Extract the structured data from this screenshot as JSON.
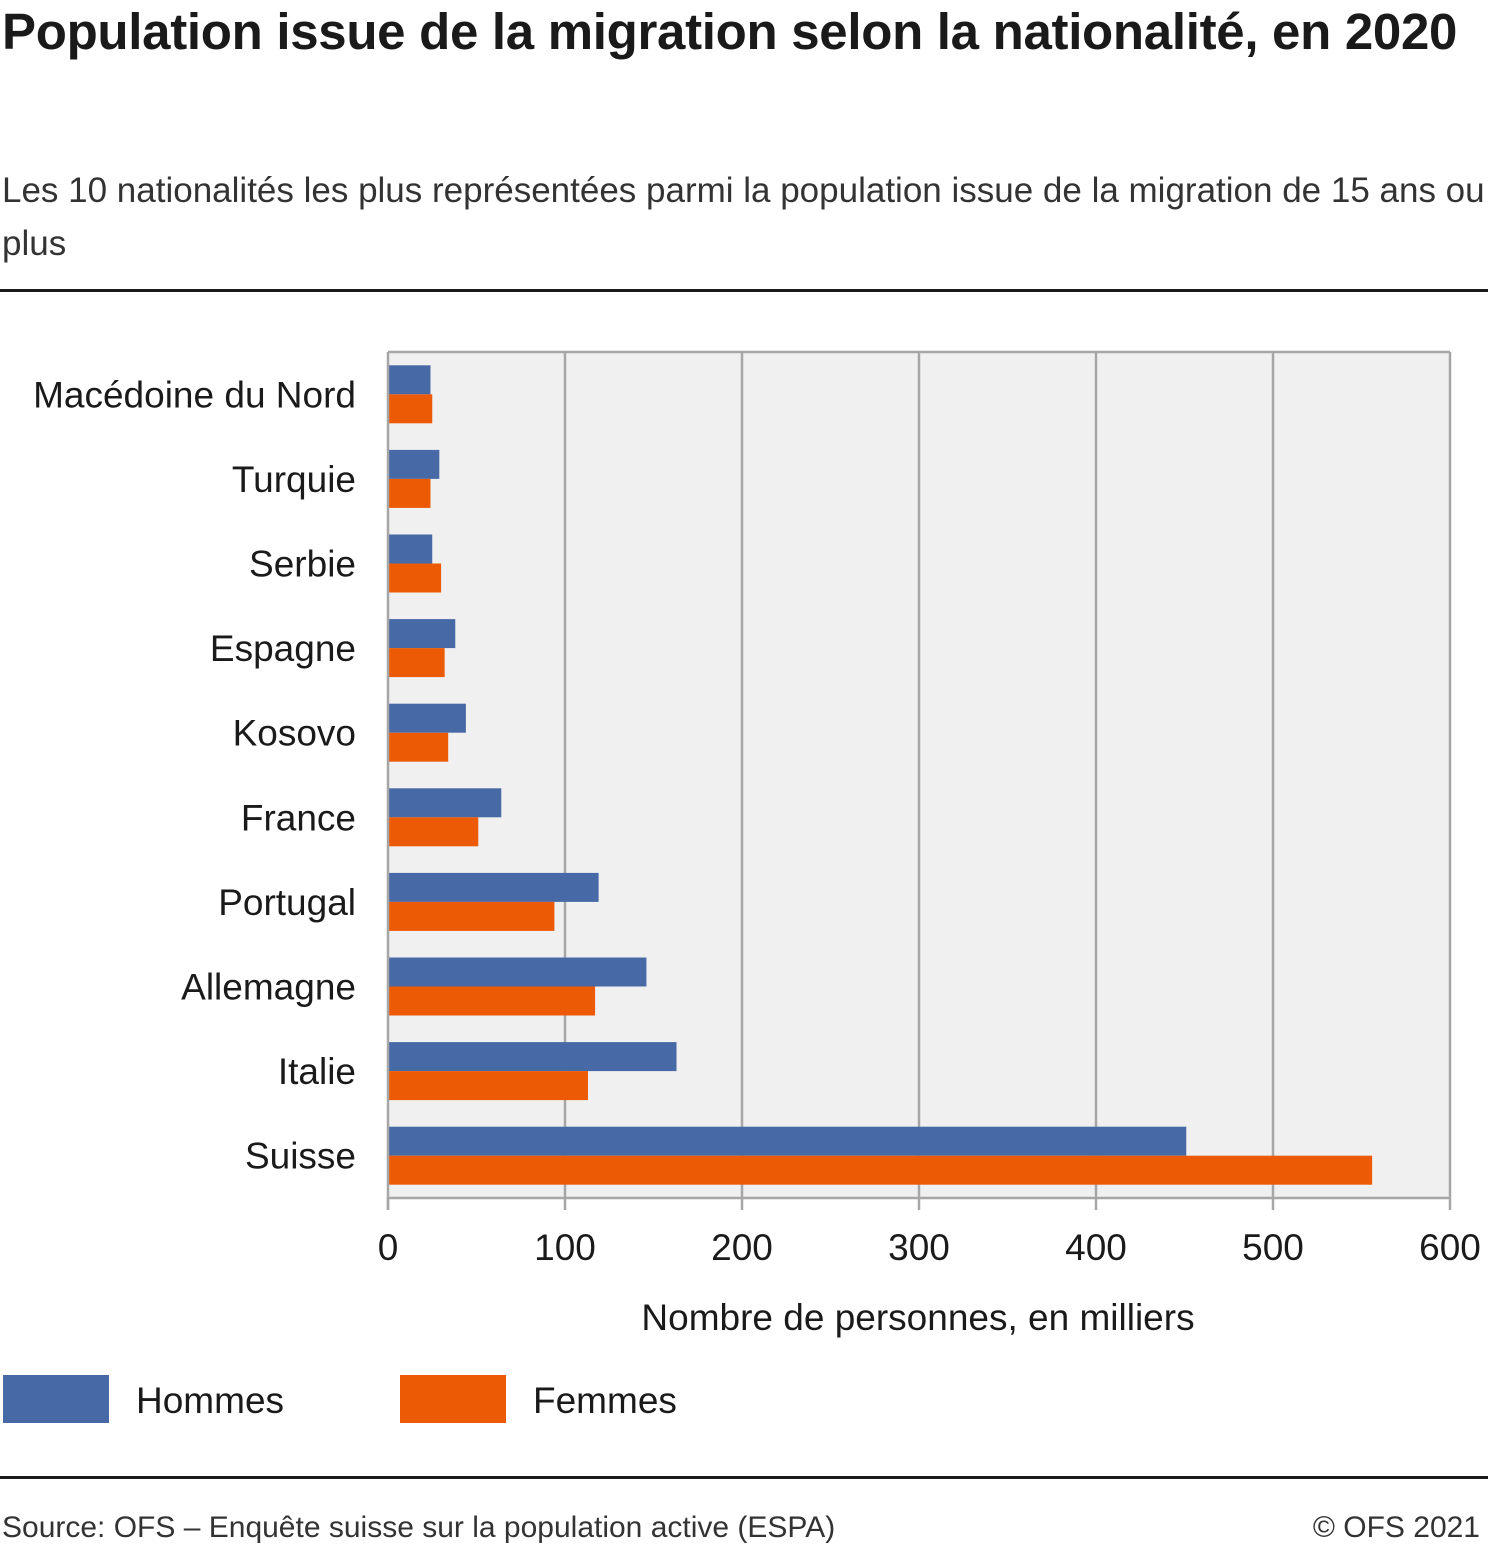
{
  "title": "Population issue de la migration selon la nationalité, en 2020",
  "subtitle": "Les 10 nationalités les plus représentées parmi la population issue de la migration de 15 ans ou plus",
  "source": "Source: OFS – Enquête suisse sur la population active (ESPA)",
  "copyright": "© OFS 2021",
  "colors": {
    "hommes": "#4769a6",
    "femmes": "#ec5a05",
    "plot_bg": "#f0f0f0",
    "grid": "#a6a6a6"
  },
  "legend": [
    {
      "label": "Hommes",
      "color": "#4769a6"
    },
    {
      "label": "Femmes",
      "color": "#ec5a05"
    }
  ],
  "chart_data": {
    "type": "bar",
    "orientation": "horizontal",
    "categories": [
      "Macédoine du Nord",
      "Turquie",
      "Serbie",
      "Espagne",
      "Kosovo",
      "France",
      "Portugal",
      "Allemagne",
      "Italie",
      "Suisse"
    ],
    "series": [
      {
        "name": "Hommes",
        "values": [
          24,
          29,
          25,
          38,
          44,
          64,
          119,
          146,
          163,
          451
        ]
      },
      {
        "name": "Femmes",
        "values": [
          25,
          24,
          30,
          32,
          34,
          51,
          94,
          117,
          113,
          556
        ]
      }
    ],
    "xlabel": "Nombre de personnes, en milliers",
    "xlim": [
      0,
      600
    ],
    "xticks": [
      "0",
      "100",
      "200",
      "300",
      "400",
      "500",
      "600"
    ],
    "grid": true,
    "legend_position": "bottom"
  }
}
